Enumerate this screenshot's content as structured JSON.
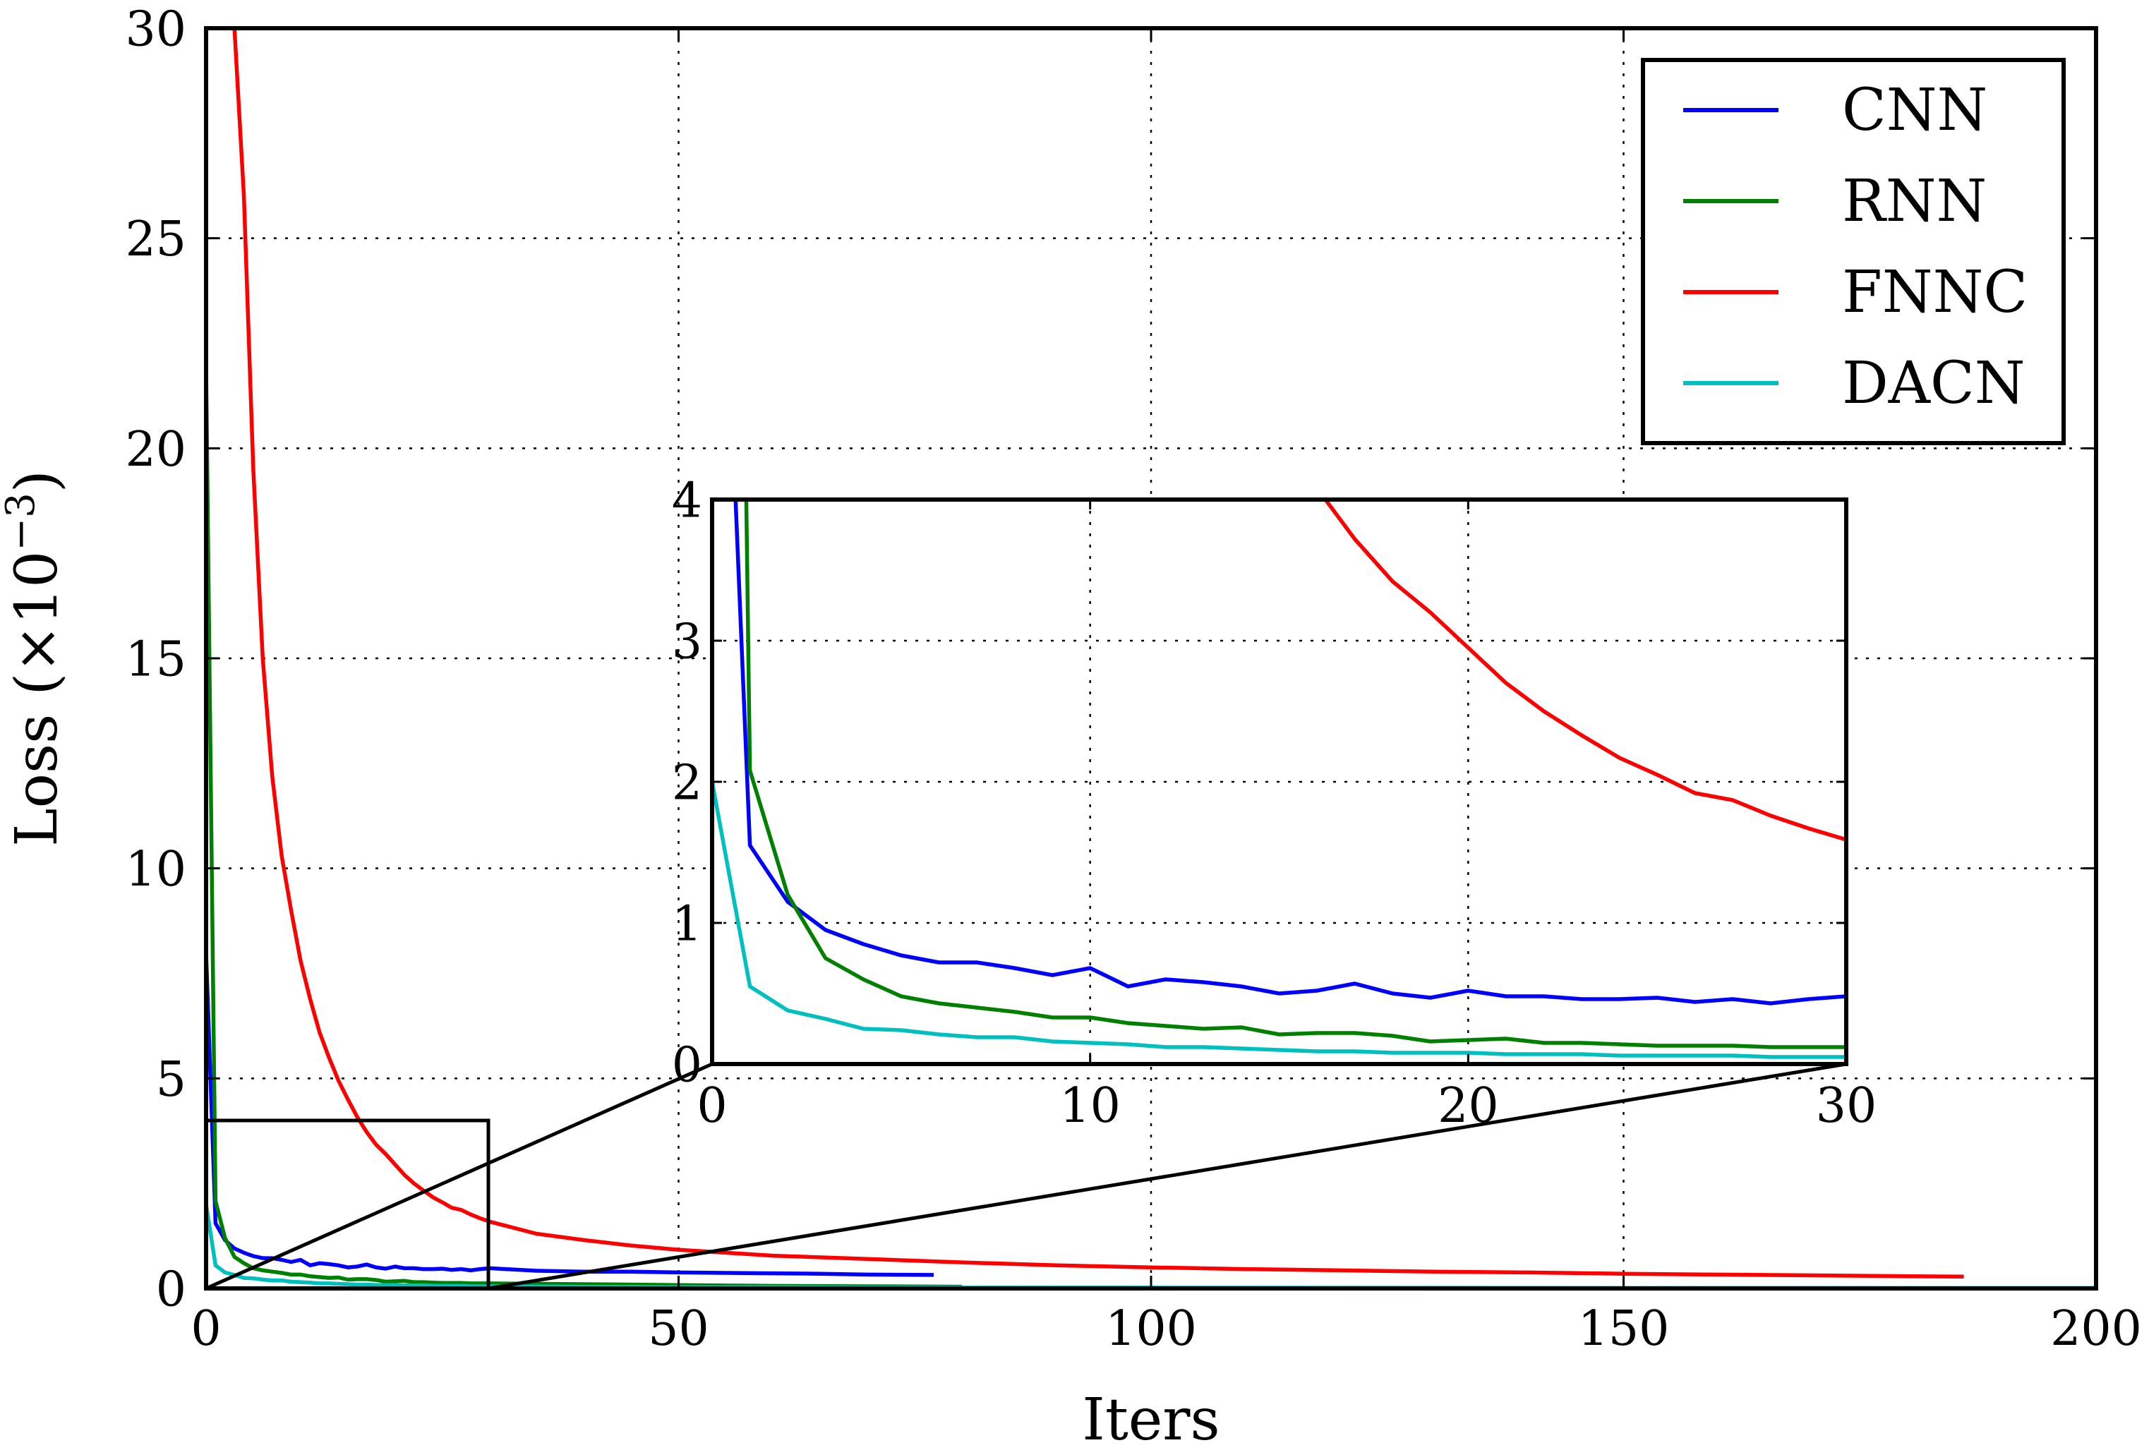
{
  "chart_data": {
    "type": "line",
    "xlabel": "Iters",
    "ylabel": "Loss (×10⁻³)",
    "ylabel_parts": {
      "main": "Loss",
      "open": "(×10",
      "exp": "−3",
      "close": ")"
    },
    "xlim": [
      0,
      200
    ],
    "ylim": [
      0,
      30
    ],
    "xticks": [
      "0",
      "50",
      "100",
      "150",
      "200"
    ],
    "yticks": [
      "0",
      "5",
      "10",
      "15",
      "20",
      "25",
      "30"
    ],
    "grid": true,
    "legend_position": "top-right",
    "series": [
      {
        "name": "CNN",
        "color": "#0000ff",
        "x": [
          0,
          1,
          2,
          3,
          4,
          5,
          6,
          7,
          8,
          9,
          10,
          11,
          12,
          13,
          14,
          15,
          16,
          17,
          18,
          19,
          20,
          21,
          22,
          23,
          24,
          25,
          26,
          27,
          28,
          29,
          30,
          35,
          40,
          45,
          50,
          55,
          60,
          65,
          70,
          77
        ],
        "y": [
          8.0,
          1.55,
          1.15,
          0.95,
          0.85,
          0.77,
          0.72,
          0.72,
          0.68,
          0.63,
          0.68,
          0.55,
          0.6,
          0.58,
          0.55,
          0.5,
          0.52,
          0.57,
          0.5,
          0.47,
          0.52,
          0.48,
          0.48,
          0.46,
          0.46,
          0.47,
          0.44,
          0.46,
          0.43,
          0.46,
          0.48,
          0.42,
          0.4,
          0.4,
          0.38,
          0.37,
          0.36,
          0.35,
          0.33,
          0.32
        ]
      },
      {
        "name": "RNN",
        "color": "#008000",
        "x": [
          0,
          1,
          2,
          3,
          4,
          5,
          6,
          7,
          8,
          9,
          10,
          11,
          12,
          13,
          14,
          15,
          16,
          17,
          18,
          19,
          20,
          21,
          22,
          23,
          24,
          25,
          26,
          27,
          28,
          29,
          30,
          40,
          50,
          60,
          70,
          80
        ],
        "y": [
          22.0,
          2.08,
          1.2,
          0.75,
          0.6,
          0.48,
          0.43,
          0.4,
          0.37,
          0.33,
          0.33,
          0.29,
          0.27,
          0.25,
          0.26,
          0.21,
          0.22,
          0.22,
          0.2,
          0.16,
          0.17,
          0.18,
          0.15,
          0.15,
          0.14,
          0.13,
          0.13,
          0.13,
          0.12,
          0.12,
          0.12,
          0.1,
          0.08,
          0.06,
          0.05,
          0.04
        ]
      },
      {
        "name": "FNNC",
        "color": "#ff0000",
        "x": [
          3,
          4,
          5,
          6,
          7,
          8,
          9,
          10,
          11,
          12,
          13,
          14,
          15,
          16,
          17,
          18,
          19,
          20,
          21,
          22,
          23,
          24,
          25,
          26,
          27,
          28,
          29,
          30,
          35,
          40,
          45,
          50,
          55,
          60,
          70,
          80,
          90,
          100,
          110,
          120,
          130,
          140,
          150,
          160,
          170,
          180,
          186
        ],
        "y": [
          30.0,
          26.0,
          19.5,
          15.0,
          12.2,
          10.3,
          9.0,
          7.8,
          6.9,
          6.1,
          5.5,
          4.95,
          4.5,
          4.08,
          3.72,
          3.42,
          3.2,
          2.95,
          2.7,
          2.5,
          2.33,
          2.17,
          2.05,
          1.92,
          1.87,
          1.76,
          1.67,
          1.59,
          1.3,
          1.15,
          1.02,
          0.92,
          0.85,
          0.78,
          0.7,
          0.62,
          0.55,
          0.5,
          0.46,
          0.43,
          0.4,
          0.38,
          0.35,
          0.33,
          0.31,
          0.29,
          0.28
        ]
      },
      {
        "name": "DACN",
        "color": "#00bfbf",
        "x": [
          0,
          1,
          2,
          3,
          4,
          5,
          6,
          7,
          8,
          9,
          10,
          11,
          12,
          13,
          14,
          15,
          16,
          17,
          18,
          19,
          20,
          21,
          22,
          23,
          24,
          25,
          26,
          27,
          28,
          29,
          30,
          40,
          50,
          60,
          70,
          80,
          90,
          100,
          150,
          200
        ],
        "y": [
          2.0,
          0.55,
          0.38,
          0.32,
          0.25,
          0.24,
          0.21,
          0.19,
          0.19,
          0.16,
          0.15,
          0.14,
          0.12,
          0.12,
          0.11,
          0.1,
          0.09,
          0.09,
          0.08,
          0.08,
          0.08,
          0.07,
          0.07,
          0.07,
          0.06,
          0.06,
          0.06,
          0.06,
          0.05,
          0.05,
          0.05,
          0.04,
          0.03,
          0.03,
          0.02,
          0.02,
          0.02,
          0.02,
          0.01,
          0.01
        ]
      }
    ],
    "inset": {
      "xlim": [
        0,
        30
      ],
      "ylim": [
        0,
        4
      ],
      "xticks": [
        "0",
        "10",
        "20",
        "30"
      ],
      "yticks": [
        "0",
        "1",
        "2",
        "3",
        "4"
      ],
      "grid": true
    }
  }
}
